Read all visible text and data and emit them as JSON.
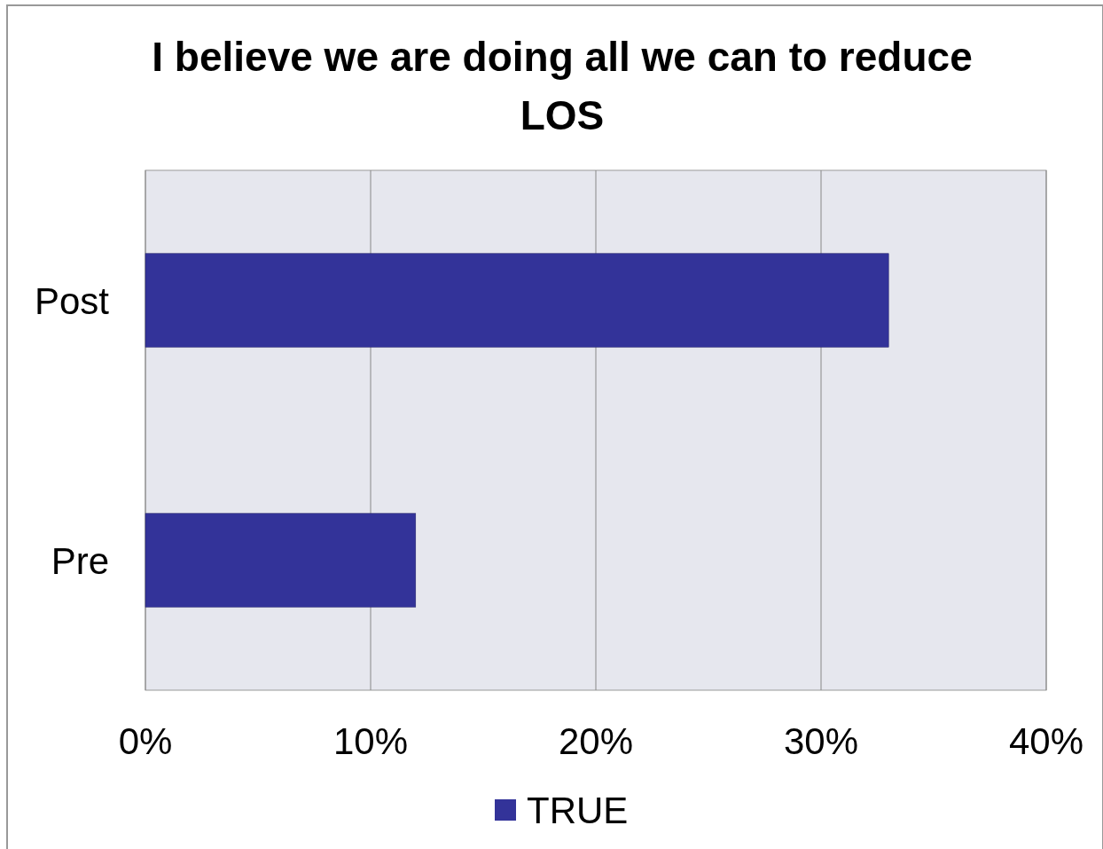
{
  "chart_data": {
    "type": "bar",
    "title": "I believe we are doing all we can to reduce LOS",
    "orientation": "horizontal",
    "categories": [
      "Post",
      "Pre"
    ],
    "series": [
      {
        "name": "TRUE",
        "color": "#333399",
        "values": [
          33,
          12
        ]
      }
    ],
    "xlim": [
      0,
      40
    ],
    "xticks": [
      {
        "value": 0,
        "label": "0%"
      },
      {
        "value": 10,
        "label": "10%"
      },
      {
        "value": 20,
        "label": "20%"
      },
      {
        "value": 30,
        "label": "30%"
      },
      {
        "value": 40,
        "label": "40%"
      }
    ],
    "grid": "x",
    "legend": "bottom"
  }
}
